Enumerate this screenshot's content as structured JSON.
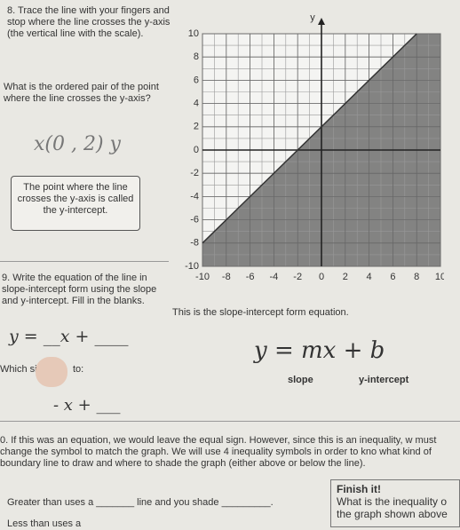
{
  "q8": {
    "prompt": "8. Trace the line with your fingers and stop where the line crosses the y-axis (the vertical line with the scale).",
    "question": "What is the ordered pair of the point where the line crosses the y-axis?",
    "answer": "x(0 , 2) y",
    "note": "The point where the line crosses the y-axis is called the y-intercept."
  },
  "graph": {
    "y_label": "y",
    "xlim": [
      -10,
      10
    ],
    "ylim": [
      -10,
      10
    ],
    "xticks": [
      -10,
      -8,
      -6,
      -4,
      -2,
      0,
      2,
      4,
      6,
      8,
      10
    ],
    "yticks": [
      -10,
      -8,
      -6,
      -4,
      -2,
      0,
      2,
      4,
      6,
      8,
      10
    ],
    "line": {
      "x": [
        -10,
        8
      ],
      "y": [
        -8,
        10
      ]
    },
    "shade_color": "#6e6e6e"
  },
  "q9": {
    "prompt": "9. Write the equation of the line in slope-intercept form using the slope and y-intercept. Fill in the blanks.",
    "blank_equation": "y = __x + ____",
    "which_start": "Which si",
    "which_end": "to:",
    "partial": "- x + ___",
    "form_caption": "This is the slope-intercept form equation.",
    "form": "y = mx + b",
    "slope": "slope",
    "intercept": "y-intercept"
  },
  "q10": {
    "prompt": "0. If this was an equation, we would leave the equal sign. However, since this is an inequality, w must change the symbol to match the graph. We will use 4 inequality symbols in order to kno what kind of boundary line to draw and where to shade the graph (either above or below the line).",
    "greater": "Greater than uses a _______ line and you shade _________.",
    "less": "Less than uses a",
    "finish_title": "Finish it!",
    "finish_text": "What is the inequality o the graph shown above"
  }
}
